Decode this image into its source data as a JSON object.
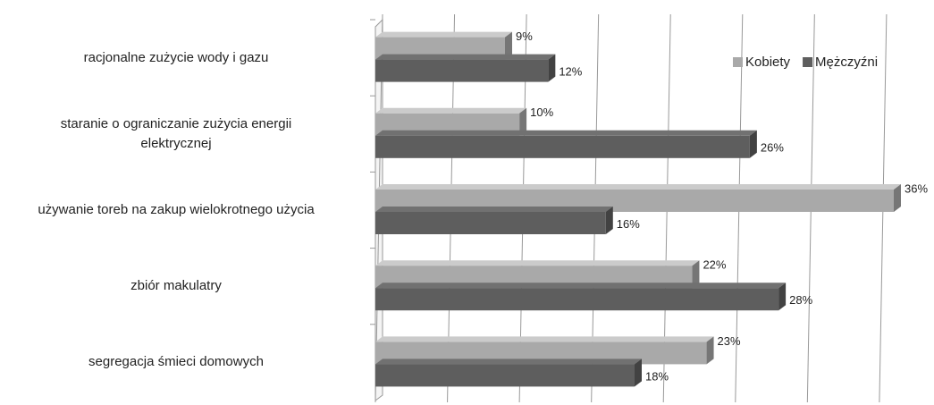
{
  "chart_data": {
    "type": "bar3d-horizontal",
    "categories": [
      "racjonalne zużycie wody i gazu",
      "staranie o ograniczanie zużycia energii\nelektrycznej",
      "używanie toreb na zakup wielokrotnego użycia",
      "zbiór makulatry",
      "segregacja śmieci domowych"
    ],
    "series": [
      {
        "name": "Kobiety",
        "color": "#a9a9a9",
        "values": [
          9,
          10,
          36,
          22,
          23
        ],
        "value_labels": [
          "9%",
          "10%",
          "36%",
          "22%",
          "23%"
        ]
      },
      {
        "name": "Mężczyźni",
        "color": "#5e5e5e",
        "values": [
          12,
          26,
          16,
          28,
          18
        ],
        "value_labels": [
          "12%",
          "26%",
          "16%",
          "28%",
          "18%"
        ]
      }
    ],
    "xlim": [
      0,
      36
    ],
    "xticks": [
      0,
      5,
      10,
      15,
      20,
      25,
      30,
      35
    ],
    "grid": true,
    "legend": "top-right"
  }
}
